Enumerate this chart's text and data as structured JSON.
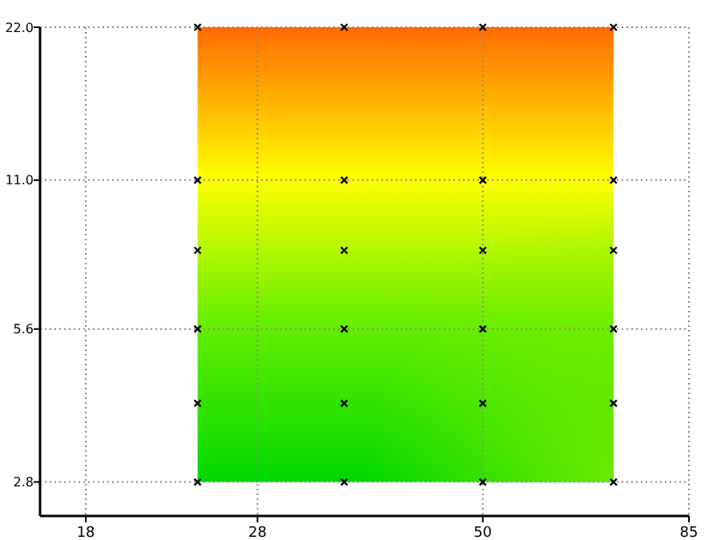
{
  "chart_data": {
    "type": "scatter",
    "log": "xy",
    "grid": true,
    "marker": "cross",
    "xlim": [
      16,
      85
    ],
    "ylim": [
      2.4,
      22
    ],
    "xticks": [
      18,
      28,
      50,
      85
    ],
    "yticks": [
      {
        "value": 2.8,
        "label": "2.8"
      },
      {
        "value": 5.6,
        "label": "5.6"
      },
      {
        "value": 11,
        "label": "11.0"
      },
      {
        "value": 22,
        "label": "22.0"
      }
    ],
    "series": [
      {
        "color": "#000000",
        "x": [
          24,
          35,
          50,
          70,
          24,
          35,
          50,
          70,
          24,
          35,
          50,
          70,
          24,
          35,
          50,
          70,
          24,
          35,
          50,
          70,
          24,
          35,
          50,
          70
        ],
        "values": [
          2.8,
          2.8,
          2.8,
          2.8,
          4,
          4,
          4,
          4,
          5.6,
          5.6,
          5.6,
          5.6,
          8,
          8,
          8,
          8,
          11,
          11,
          11,
          11,
          22,
          22,
          22,
          22
        ]
      }
    ]
  }
}
